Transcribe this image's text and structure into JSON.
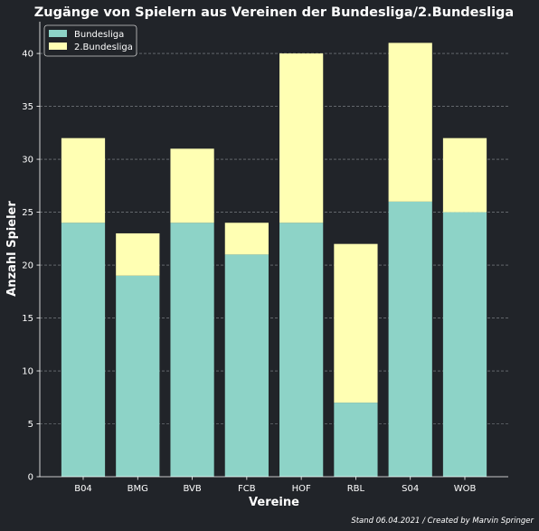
{
  "chart_data": {
    "type": "bar",
    "stacked": true,
    "title": "Zugänge von Spielern aus Vereinen der Bundesliga/2.Bundesliga",
    "xlabel": "Vereine",
    "ylabel": "Anzahl Spieler",
    "categories": [
      "B04",
      "BMG",
      "BVB",
      "FCB",
      "HOF",
      "RBL",
      "S04",
      "WOB"
    ],
    "series": [
      {
        "name": "Bundesliga",
        "color": "#8dd3c7",
        "values": [
          24,
          19,
          24,
          21,
          24,
          7,
          26,
          25
        ]
      },
      {
        "name": "2.Bundesliga",
        "color": "#ffffb3",
        "values": [
          8,
          4,
          7,
          3,
          16,
          15,
          15,
          7
        ]
      }
    ],
    "ylim": [
      0,
      43
    ],
    "yticks": [
      0,
      5,
      10,
      15,
      20,
      25,
      30,
      35,
      40
    ],
    "grid": true,
    "legend_position": "top-left"
  },
  "footer": "Stand 06.04.2021 / Created by Marvin Springer"
}
